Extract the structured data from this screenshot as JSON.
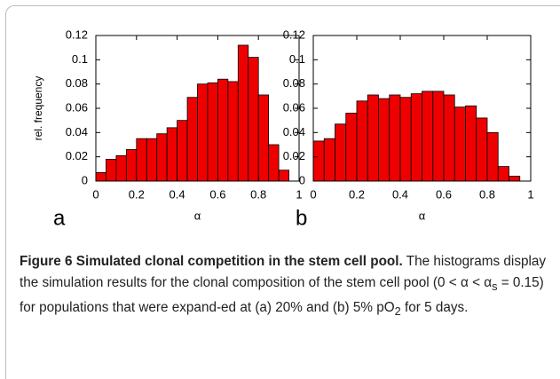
{
  "chart_data": [
    {
      "type": "histogram",
      "panel_label": "a",
      "xlabel": "α",
      "ylabel": "rel. frequency",
      "color": "#ee0000",
      "bins": [
        0,
        0.05,
        0.1,
        0.15,
        0.2,
        0.25,
        0.3,
        0.35,
        0.4,
        0.45,
        0.5,
        0.55,
        0.6,
        0.65,
        0.7,
        0.75,
        0.8,
        0.85,
        0.9,
        0.95
      ],
      "values": [
        0.007,
        0.018,
        0.021,
        0.026,
        0.035,
        0.035,
        0.039,
        0.044,
        0.05,
        0.069,
        0.08,
        0.081,
        0.084,
        0.082,
        0.112,
        0.102,
        0.071,
        0.03,
        0.009
      ],
      "xlim": [
        0,
        1
      ],
      "xticks": [
        0,
        0.2,
        0.4,
        0.6,
        0.8,
        1
      ],
      "ylim": [
        0,
        0.12
      ],
      "yticks": [
        0,
        0.02,
        0.04,
        0.06,
        0.08,
        0.1,
        0.12
      ]
    },
    {
      "type": "histogram",
      "panel_label": "b",
      "xlabel": "α",
      "color": "#ee0000",
      "bins": [
        0,
        0.05,
        0.1,
        0.15,
        0.2,
        0.25,
        0.3,
        0.35,
        0.4,
        0.45,
        0.5,
        0.55,
        0.6,
        0.65,
        0.7,
        0.75,
        0.8,
        0.85,
        0.9,
        0.95
      ],
      "values": [
        0.033,
        0.035,
        0.047,
        0.056,
        0.066,
        0.071,
        0.068,
        0.071,
        0.069,
        0.072,
        0.074,
        0.074,
        0.071,
        0.061,
        0.062,
        0.052,
        0.04,
        0.012,
        0.004
      ],
      "xlim": [
        0,
        1
      ],
      "xticks": [
        0,
        0.2,
        0.4,
        0.6,
        0.8,
        1
      ],
      "ylim": [
        0,
        0.12
      ],
      "yticks": [
        0,
        0.02,
        0.04,
        0.06,
        0.08,
        0.1,
        0.12
      ]
    }
  ],
  "caption": {
    "title": "Figure 6 Simulated clonal competition in the stem cell pool.",
    "segments": [
      " The histograms display the simulation results for the clonal composition of the stem cell pool (0 < α < α",
      "s",
      " = 0.15) for populations that were expand-ed at (a) 20% and (b) 5% pO",
      "2",
      " for 5 days."
    ]
  }
}
